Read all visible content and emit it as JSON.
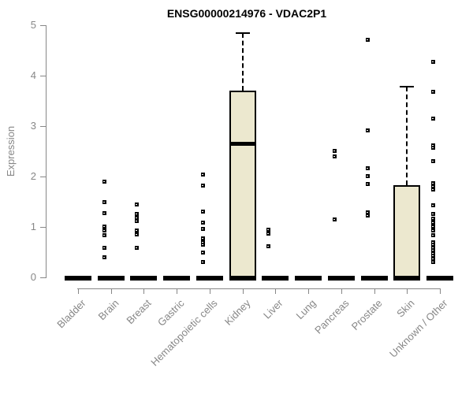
{
  "title": "ENSG00000214976 - VDAC2P1",
  "chart_data": {
    "type": "boxplot",
    "title": "ENSG00000214976 - VDAC2P1",
    "xlabel": "",
    "ylabel": "Expression",
    "ylim": [
      0,
      5
    ],
    "yticks": [
      0,
      1,
      2,
      3,
      4,
      5
    ],
    "grid": false,
    "legend": false,
    "categories": [
      "Bladder",
      "Brain",
      "Breast",
      "Gastric",
      "Hematopoietic cells",
      "Kidney",
      "Liver",
      "Lung",
      "Pancreas",
      "Prostate",
      "Skin",
      "Unknown / Other"
    ],
    "boxes": [
      {
        "category": "Bladder",
        "q1": 0,
        "median": 0,
        "q3": 0,
        "whisker_low": 0,
        "whisker_high": 0,
        "outliers": []
      },
      {
        "category": "Brain",
        "q1": 0,
        "median": 0,
        "q3": 0,
        "whisker_low": 0,
        "whisker_high": 0,
        "outliers": [
          1.9,
          1.5,
          1.28,
          1.02,
          0.93,
          0.85,
          0.6,
          0.4
        ]
      },
      {
        "category": "Breast",
        "q1": 0,
        "median": 0,
        "q3": 0,
        "whisker_low": 0,
        "whisker_high": 0,
        "outliers": [
          1.45,
          1.26,
          1.19,
          1.12,
          0.94,
          0.86,
          0.59
        ]
      },
      {
        "category": "Gastric",
        "q1": 0,
        "median": 0,
        "q3": 0,
        "whisker_low": 0,
        "whisker_high": 0,
        "outliers": []
      },
      {
        "category": "Hematopoietic cells",
        "q1": 0,
        "median": 0,
        "q3": 0,
        "whisker_low": 0,
        "whisker_high": 0,
        "outliers": [
          2.05,
          1.83,
          1.32,
          1.09,
          0.97,
          0.78,
          0.71,
          0.66,
          0.5,
          0.32
        ]
      },
      {
        "category": "Kidney",
        "q1": 0,
        "median": 2.65,
        "q3": 3.7,
        "whisker_low": 0,
        "whisker_high": 4.85,
        "outliers": []
      },
      {
        "category": "Liver",
        "q1": 0,
        "median": 0,
        "q3": 0,
        "whisker_low": 0,
        "whisker_high": 0,
        "outliers": [
          0.95,
          0.87,
          0.62
        ]
      },
      {
        "category": "Lung",
        "q1": 0,
        "median": 0,
        "q3": 0,
        "whisker_low": 0,
        "whisker_high": 0,
        "outliers": []
      },
      {
        "category": "Pancreas",
        "q1": 0,
        "median": 0,
        "q3": 0,
        "whisker_low": 0,
        "whisker_high": 0,
        "outliers": [
          2.52,
          2.41,
          1.15
        ]
      },
      {
        "category": "Prostate",
        "q1": 0,
        "median": 0,
        "q3": 0,
        "whisker_low": 0,
        "whisker_high": 0,
        "outliers": [
          4.72,
          2.92,
          2.17,
          2.01,
          1.86,
          1.3,
          1.23
        ]
      },
      {
        "category": "Skin",
        "q1": 0,
        "median": 0,
        "q3": 1.83,
        "whisker_low": 0,
        "whisker_high": 3.78,
        "outliers": []
      },
      {
        "category": "Unknown / Other",
        "q1": 0,
        "median": 0,
        "q3": 0,
        "whisker_low": 0,
        "whisker_high": 0,
        "outliers": [
          4.28,
          3.69,
          3.16,
          2.63,
          2.58,
          2.32,
          1.88,
          1.81,
          1.75,
          1.44,
          1.26,
          1.17,
          1.09,
          1.01,
          0.93,
          0.85,
          0.71,
          0.65,
          0.59,
          0.54,
          0.48,
          0.43,
          0.37,
          0.31
        ]
      }
    ],
    "colors": {
      "box_fill": "#ece8cf",
      "box_border": "#000000",
      "axis": "#878787",
      "tick_label": "#878787",
      "title": "#000000",
      "point": "#000000"
    }
  }
}
